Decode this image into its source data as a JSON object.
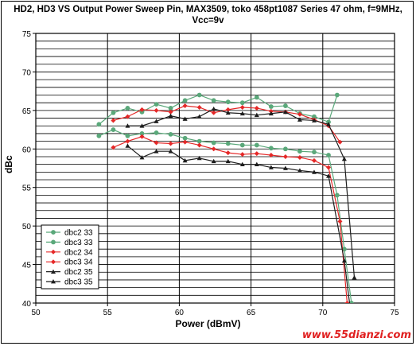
{
  "chart_data": {
    "type": "line",
    "title": "HD2, HD3 VS Output Power Sweep Pin, MAX3509, toko 458pt1087 Series 47 ohm, f=9MHz, Vcc=9v",
    "title_lines": [
      "HD2, HD3 VS Output Power Sweep Pin, MAX3509, toko 458pt1087 Series 47 ohm, f=9MHz,",
      "Vcc=9v"
    ],
    "xlabel": "Power (dBmV)",
    "ylabel": "dBc",
    "xlim": [
      50,
      75
    ],
    "ylim": [
      40,
      75
    ],
    "x_ticks": [
      "50",
      "55",
      "60",
      "65",
      "70",
      "75"
    ],
    "y_ticks": [
      "40",
      "45",
      "50",
      "55",
      "60",
      "65",
      "70",
      "75"
    ],
    "grid": true,
    "legend_position": "bottom-left",
    "series": [
      {
        "name": "dbc2 33",
        "color": "#5aa87a",
        "marker": "circle",
        "x": [
          54.4,
          55.4,
          56.4,
          57.4,
          58.4,
          59.4,
          60.4,
          61.4,
          62.4,
          63.4,
          64.4,
          65.4,
          66.4,
          67.4,
          68.4,
          69.4,
          70.4,
          71.0
        ],
        "y": [
          63.2,
          64.7,
          65.3,
          64.8,
          65.8,
          65.3,
          66.3,
          67.0,
          66.3,
          66.1,
          66.0,
          66.7,
          65.5,
          65.6,
          64.6,
          64.2,
          63.5,
          67.0
        ]
      },
      {
        "name": "dbc3 33",
        "color": "#5aa87a",
        "marker": "circle",
        "x": [
          54.4,
          55.4,
          56.4,
          57.4,
          58.4,
          59.4,
          60.4,
          61.4,
          62.4,
          63.4,
          64.4,
          65.4,
          66.4,
          67.4,
          68.4,
          69.4,
          70.4,
          71.0,
          71.5,
          72.0
        ],
        "y": [
          61.7,
          62.5,
          61.7,
          62.0,
          62.1,
          61.9,
          61.4,
          61.0,
          60.8,
          60.7,
          60.5,
          60.5,
          60.1,
          60.0,
          59.7,
          59.6,
          59.2,
          54.0,
          47.0,
          40.0
        ]
      },
      {
        "name": "dbc2 34",
        "color": "#e52828",
        "marker": "diamond",
        "x": [
          55.4,
          56.4,
          57.4,
          58.4,
          59.4,
          60.4,
          61.4,
          62.4,
          63.4,
          64.4,
          65.4,
          66.4,
          67.4,
          68.4,
          69.4,
          70.4,
          71.2
        ],
        "y": [
          63.7,
          64.2,
          65.1,
          65.0,
          64.8,
          65.6,
          65.4,
          64.7,
          65.1,
          65.4,
          65.3,
          64.9,
          64.8,
          64.5,
          63.8,
          63.0,
          60.9
        ]
      },
      {
        "name": "dbc3 34",
        "color": "#e52828",
        "marker": "diamond",
        "x": [
          55.4,
          56.4,
          57.4,
          58.4,
          59.4,
          60.4,
          61.4,
          62.4,
          63.4,
          64.4,
          65.4,
          66.4,
          67.4,
          68.4,
          69.4,
          70.4,
          71.2,
          71.7
        ],
        "y": [
          60.2,
          61.0,
          61.6,
          60.8,
          60.7,
          60.9,
          60.5,
          60.0,
          59.5,
          59.3,
          59.4,
          59.2,
          59.0,
          58.9,
          58.5,
          57.6,
          50.6,
          40.0
        ]
      },
      {
        "name": "dbc2 35",
        "color": "#1e1e1e",
        "marker": "triangle",
        "x": [
          56.4,
          57.4,
          58.4,
          59.4,
          60.4,
          61.4,
          62.4,
          63.4,
          64.4,
          65.4,
          66.4,
          67.4,
          68.4,
          69.4,
          70.4,
          71.5,
          72.2
        ],
        "y": [
          63.0,
          63.0,
          63.6,
          64.3,
          63.9,
          64.2,
          65.2,
          64.7,
          64.6,
          64.4,
          64.6,
          64.8,
          63.8,
          63.7,
          63.2,
          58.7,
          43.3
        ]
      },
      {
        "name": "dbc3 35",
        "color": "#1e1e1e",
        "marker": "triangle",
        "x": [
          56.4,
          57.4,
          58.4,
          59.4,
          60.4,
          61.4,
          62.4,
          63.4,
          64.4,
          65.4,
          66.4,
          67.4,
          68.4,
          69.4,
          70.4,
          71.5,
          72.0
        ],
        "y": [
          60.4,
          58.9,
          59.7,
          59.7,
          58.5,
          58.8,
          58.4,
          58.4,
          58.0,
          58.0,
          57.6,
          57.5,
          57.2,
          57.0,
          56.5,
          45.5,
          38.0
        ]
      }
    ]
  },
  "watermark": "www.55dianzi.com"
}
